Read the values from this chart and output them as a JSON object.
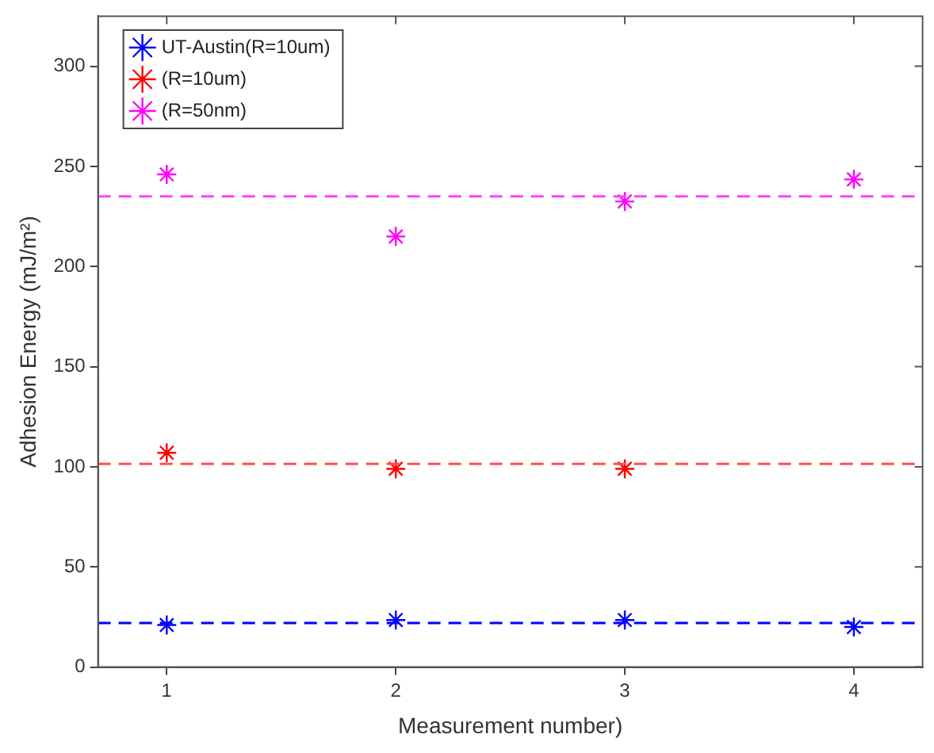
{
  "chart_data": {
    "type": "scatter",
    "xlabel": "Measurement number)",
    "ylabel": "Adhesion Energy (mJ/m²)",
    "xlim": [
      0.7,
      4.3
    ],
    "xticks": [
      1,
      2,
      3,
      4
    ],
    "ylim": [
      0,
      325
    ],
    "yticks": [
      0,
      50,
      100,
      150,
      200,
      250,
      300
    ],
    "marker": "cross",
    "legend": "top left",
    "grid": false,
    "series": [
      {
        "name": "UT-Austin(R=10um)",
        "color": "#0000ff",
        "x": [
          1,
          2,
          3,
          4
        ],
        "values": [
          21,
          23.5,
          23.5,
          20
        ]
      },
      {
        "name": "(R=10um)",
        "color": "#ff0000",
        "x": [
          1,
          2,
          3
        ],
        "values": [
          107,
          99,
          99
        ]
      },
      {
        "name": "(R=50nm)",
        "color": "#ff00ff",
        "x": [
          1,
          2,
          3,
          4
        ],
        "values": [
          246,
          215,
          232.5,
          243.5
        ]
      }
    ],
    "ref_lines": [
      {
        "axis": "y",
        "value": 22,
        "color": "#0000ff",
        "line_style": "dashed"
      },
      {
        "axis": "y",
        "value": 101.5,
        "color": "#ff5050",
        "line_style": "dashed"
      },
      {
        "axis": "y",
        "value": 235,
        "color": "#ff40ff",
        "line_style": "dashed"
      }
    ]
  }
}
